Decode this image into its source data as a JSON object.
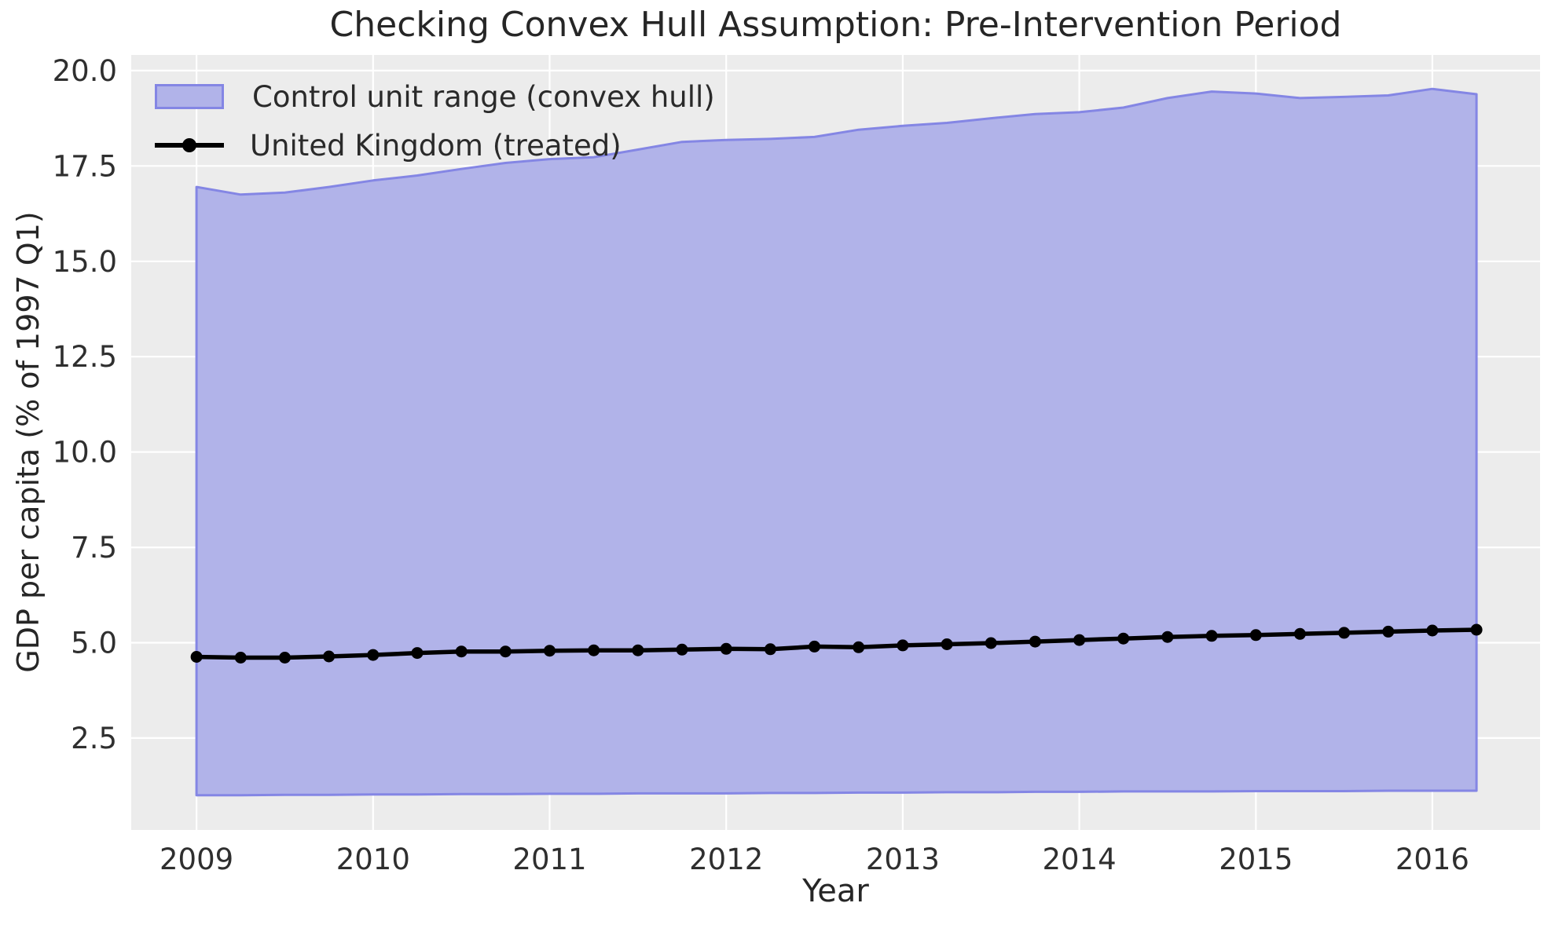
{
  "chart_data": {
    "type": "area",
    "title": "Checking Convex Hull Assumption: Pre-Intervention Period",
    "xlabel": "Year",
    "ylabel": "GDP per capita (% of 1997 Q1)",
    "x": [
      2009.0,
      2009.25,
      2009.5,
      2009.75,
      2010.0,
      2010.25,
      2010.5,
      2010.75,
      2011.0,
      2011.25,
      2011.5,
      2011.75,
      2012.0,
      2012.25,
      2012.5,
      2012.75,
      2013.0,
      2013.25,
      2013.5,
      2013.75,
      2014.0,
      2014.25,
      2014.5,
      2014.75,
      2015.0,
      2015.25,
      2015.5,
      2015.75,
      2016.0,
      2016.25
    ],
    "series": [
      {
        "name": "Control unit range (convex hull)",
        "kind": "band",
        "upper": [
          16.95,
          16.75,
          16.8,
          16.95,
          17.12,
          17.25,
          17.42,
          17.58,
          17.68,
          17.73,
          17.93,
          18.13,
          18.18,
          18.21,
          18.26,
          18.45,
          18.55,
          18.63,
          18.75,
          18.86,
          18.91,
          19.03,
          19.28,
          19.45,
          19.4,
          19.28,
          19.31,
          19.35,
          19.52,
          19.38
        ],
        "lower": [
          1.0,
          1.0,
          1.01,
          1.01,
          1.02,
          1.02,
          1.03,
          1.03,
          1.04,
          1.04,
          1.05,
          1.05,
          1.05,
          1.06,
          1.06,
          1.07,
          1.07,
          1.08,
          1.08,
          1.09,
          1.09,
          1.1,
          1.1,
          1.1,
          1.11,
          1.11,
          1.11,
          1.12,
          1.12,
          1.12
        ],
        "fill_color": "#b1b3e9",
        "edge_color": "#8486e4"
      },
      {
        "name": "United Kingdom (treated)",
        "kind": "line",
        "values": [
          4.63,
          4.61,
          4.61,
          4.64,
          4.68,
          4.73,
          4.77,
          4.77,
          4.79,
          4.8,
          4.8,
          4.82,
          4.84,
          4.83,
          4.9,
          4.88,
          4.93,
          4.96,
          4.99,
          5.03,
          5.07,
          5.11,
          5.15,
          5.18,
          5.2,
          5.23,
          5.26,
          5.29,
          5.32,
          5.34
        ],
        "color": "#000000",
        "marker": "circle"
      }
    ],
    "xlim": [
      2008.63,
      2016.61
    ],
    "ylim": [
      0.09,
      20.41
    ],
    "xticks": [
      2009,
      2010,
      2011,
      2012,
      2013,
      2014,
      2015,
      2016
    ],
    "yticks": [
      2.5,
      5.0,
      7.5,
      10.0,
      12.5,
      15.0,
      17.5,
      20.0
    ],
    "grid": true,
    "legend_position": "upper left",
    "plot_bg": "#ececec",
    "grid_color": "#ffffff"
  }
}
